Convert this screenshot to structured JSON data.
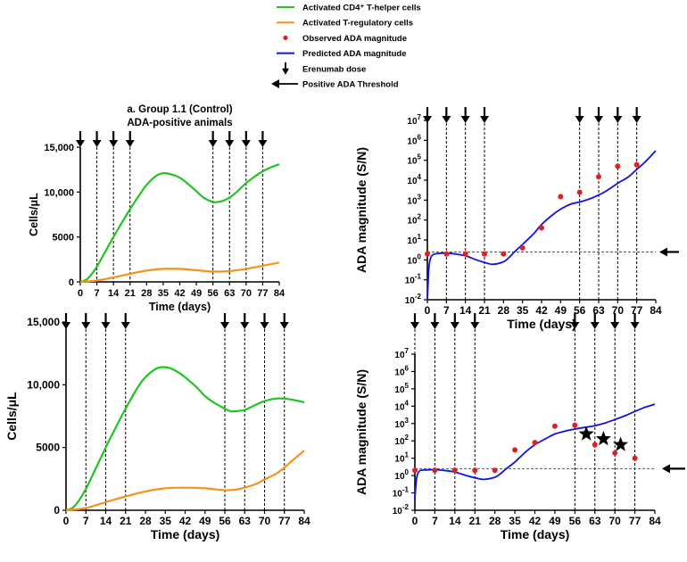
{
  "legend": {
    "items": [
      {
        "label": "Activated CD4⁺ T-helper cells",
        "marker": "line",
        "color": "#22c322"
      },
      {
        "label": "Activated T-regulatory cells",
        "marker": "line",
        "color": "#f5921e"
      },
      {
        "label": "Observed ADA magnitude",
        "marker": "dot",
        "color": "#e02020"
      },
      {
        "label": "Predicted ADA magnitude",
        "marker": "line",
        "color": "#1414d8"
      },
      {
        "label": "Erenumab dose",
        "marker": "down-arrow",
        "color": "#000000"
      },
      {
        "label": "Positive ADA Threshold",
        "marker": "left-arrow",
        "color": "#000000"
      }
    ]
  },
  "colors": {
    "cd4": "#22c322",
    "treg": "#f5921e",
    "observed": "#e02020",
    "predicted": "#1414d8",
    "axis": "#000000"
  },
  "chart_data": [
    {
      "id": "tl",
      "type": "line",
      "title": "a. Group 1.1 (Control)",
      "subtitle": "ADA-positive animals",
      "xlabel": "Time (days)",
      "ylabel": "Cells/μL",
      "xlim": [
        0,
        84
      ],
      "ylim": [
        0,
        15000
      ],
      "xticks": [
        0,
        7,
        14,
        21,
        28,
        35,
        42,
        49,
        56,
        63,
        70,
        77,
        84
      ],
      "xtick_labels": [
        "0",
        "7",
        "14",
        "21",
        "28",
        "35",
        "42",
        "49",
        "56",
        "63",
        "70",
        "77",
        "84"
      ],
      "yticks": [
        0,
        5000,
        10000,
        15000
      ],
      "ytick_labels": [
        "0",
        "5000",
        "10,000",
        "15,000"
      ],
      "dose_days": [
        0,
        7,
        14,
        21,
        56,
        63,
        70,
        77
      ],
      "series": [
        {
          "name": "Activated CD4⁺ T-helper cells",
          "color_key": "cd4",
          "x": [
            0,
            2,
            4,
            7,
            10,
            14,
            18,
            21,
            25,
            28,
            32,
            35,
            38,
            42,
            46,
            49,
            52,
            56,
            58,
            60,
            63,
            66,
            70,
            74,
            77,
            80,
            84
          ],
          "y": [
            0,
            150,
            600,
            1700,
            3100,
            5000,
            6800,
            8100,
            9700,
            10800,
            11800,
            12100,
            12000,
            11600,
            10800,
            10100,
            9400,
            8900,
            8900,
            9000,
            9400,
            10000,
            11000,
            11800,
            12300,
            12700,
            13100
          ]
        },
        {
          "name": "Activated T-regulatory cells",
          "color_key": "treg",
          "x": [
            0,
            7,
            14,
            21,
            28,
            35,
            42,
            49,
            56,
            63,
            70,
            77,
            84
          ],
          "y": [
            0,
            150,
            500,
            900,
            1250,
            1450,
            1450,
            1300,
            1150,
            1200,
            1450,
            1800,
            2150
          ]
        }
      ]
    },
    {
      "id": "tr",
      "type": "line",
      "title": "",
      "xlabel": "Time (days)",
      "ylabel": "ADA magnitude (S/N)",
      "yscale": "log",
      "xlim": [
        0,
        84
      ],
      "ylim_exp": [
        -2,
        7
      ],
      "xticks": [
        0,
        7,
        14,
        21,
        28,
        35,
        42,
        49,
        56,
        63,
        70,
        77,
        84
      ],
      "xtick_labels": [
        "0",
        "7",
        "14",
        "21",
        "28",
        "35",
        "42",
        "49",
        "56",
        "63",
        "70",
        "77",
        "84"
      ],
      "ytick_exps": [
        -2,
        -1,
        0,
        1,
        2,
        3,
        4,
        5,
        6,
        7
      ],
      "ytick_bases": [
        "10",
        "10",
        "10",
        "10",
        "10",
        "10",
        "10",
        "10",
        "10",
        "10"
      ],
      "ytick_sups": [
        "-2",
        "-1",
        "0",
        "1",
        "2",
        "3",
        "4",
        "5",
        "6",
        "7"
      ],
      "dose_days": [
        0,
        7,
        14,
        21,
        56,
        63,
        70,
        77
      ],
      "threshold": 2.5,
      "observed": {
        "name": "Observed ADA magnitude",
        "x": [
          0,
          7,
          14,
          21,
          28,
          35,
          42,
          49,
          56,
          63,
          70,
          77
        ],
        "y": [
          2,
          2,
          2,
          2,
          2,
          4,
          40,
          1500,
          2500,
          15000,
          50000,
          60000
        ]
      },
      "predicted": {
        "name": "Predicted ADA magnitude",
        "x": [
          0,
          0.5,
          1,
          2,
          4,
          7,
          10,
          14,
          18,
          21,
          24,
          28,
          30,
          32,
          35,
          39,
          42,
          46,
          49,
          53,
          56,
          60,
          63,
          66,
          70,
          74,
          77,
          80,
          84
        ],
        "y": [
          0.01,
          0.3,
          1,
          1.8,
          2.1,
          2.2,
          2,
          1.6,
          1,
          0.75,
          0.6,
          0.8,
          1.3,
          2.5,
          6,
          20,
          60,
          180,
          350,
          650,
          800,
          1200,
          1800,
          3000,
          7000,
          15000,
          35000,
          80000,
          300000
        ]
      }
    },
    {
      "id": "bl",
      "type": "line",
      "title": "",
      "xlabel": "Time (days)",
      "ylabel": "Cells/μL",
      "xlim": [
        0,
        84
      ],
      "ylim": [
        0,
        15000
      ],
      "xticks": [
        0,
        7,
        14,
        21,
        28,
        35,
        42,
        49,
        56,
        63,
        70,
        77,
        84
      ],
      "xtick_labels": [
        "0",
        "7",
        "14",
        "21",
        "28",
        "35",
        "42",
        "49",
        "56",
        "63",
        "70",
        "77",
        "84"
      ],
      "yticks": [
        0,
        5000,
        10000,
        15000
      ],
      "ytick_labels": [
        "0",
        "5000",
        "10,000",
        "15,000"
      ],
      "dose_days": [
        0,
        7,
        14,
        21,
        56,
        63,
        70,
        77
      ],
      "series": [
        {
          "name": "Activated CD4⁺ T-helper cells",
          "color_key": "cd4",
          "x": [
            0,
            2,
            4,
            7,
            10,
            14,
            18,
            21,
            25,
            28,
            32,
            35,
            38,
            42,
            46,
            49,
            52,
            56,
            58,
            60,
            63,
            66,
            70,
            74,
            77,
            80,
            84
          ],
          "y": [
            0,
            150,
            600,
            1700,
            3100,
            5000,
            6800,
            8100,
            9700,
            10600,
            11300,
            11400,
            11200,
            10600,
            9800,
            9100,
            8600,
            8100,
            7900,
            7900,
            8000,
            8300,
            8700,
            8900,
            8900,
            8800,
            8600
          ]
        },
        {
          "name": "Activated T-regulatory cells",
          "color_key": "treg",
          "x": [
            0,
            7,
            14,
            21,
            28,
            35,
            42,
            49,
            56,
            60,
            63,
            67,
            70,
            74,
            77,
            80,
            84
          ],
          "y": [
            0,
            180,
            650,
            1100,
            1500,
            1750,
            1800,
            1750,
            1600,
            1650,
            1800,
            2100,
            2450,
            2900,
            3400,
            4000,
            4750
          ]
        }
      ]
    },
    {
      "id": "br",
      "type": "line",
      "title": "",
      "xlabel": "Time (days)",
      "ylabel": "ADA magnitude (S/N)",
      "yscale": "log",
      "xlim": [
        0,
        84
      ],
      "ylim_exp": [
        -2,
        7
      ],
      "xticks": [
        0,
        7,
        14,
        21,
        28,
        35,
        42,
        49,
        56,
        63,
        70,
        77,
        84
      ],
      "xtick_labels": [
        "0",
        "7",
        "14",
        "21",
        "28",
        "35",
        "42",
        "49",
        "56",
        "63",
        "70",
        "77",
        "84"
      ],
      "ytick_exps": [
        -2,
        -1,
        0,
        1,
        2,
        3,
        4,
        5,
        6,
        7
      ],
      "ytick_bases": [
        "10",
        "10",
        "10",
        "10",
        "10",
        "10",
        "10",
        "10",
        "10",
        "10"
      ],
      "ytick_sups": [
        "-2",
        "-1",
        "0",
        "1",
        "2",
        "3",
        "4",
        "5",
        "6",
        "7"
      ],
      "dose_days": [
        0,
        7,
        14,
        21,
        56,
        63,
        70,
        77
      ],
      "threshold": 2.5,
      "observed": {
        "name": "Observed ADA magnitude",
        "x": [
          0,
          7,
          14,
          21,
          28,
          35,
          42,
          49,
          56,
          63,
          70,
          77
        ],
        "y": [
          2,
          2,
          2,
          2,
          2,
          30,
          80,
          700,
          800,
          60,
          20,
          10
        ]
      },
      "stars": {
        "x": [
          60,
          66,
          72
        ],
        "y": [
          250,
          130,
          60
        ]
      },
      "predicted": {
        "name": "Predicted ADA magnitude",
        "x": [
          0,
          0.5,
          1,
          2,
          4,
          7,
          10,
          14,
          18,
          21,
          24,
          28,
          30,
          32,
          35,
          39,
          42,
          46,
          49,
          53,
          56,
          60,
          63,
          66,
          70,
          74,
          77,
          80,
          84
        ],
        "y": [
          0.05,
          0.5,
          1.3,
          2,
          2.1,
          2.2,
          2,
          1.6,
          1,
          0.75,
          0.6,
          0.8,
          1.3,
          2.5,
          6,
          25,
          60,
          140,
          250,
          380,
          480,
          620,
          750,
          1000,
          1700,
          3000,
          5000,
          8000,
          13000
        ]
      }
    }
  ]
}
